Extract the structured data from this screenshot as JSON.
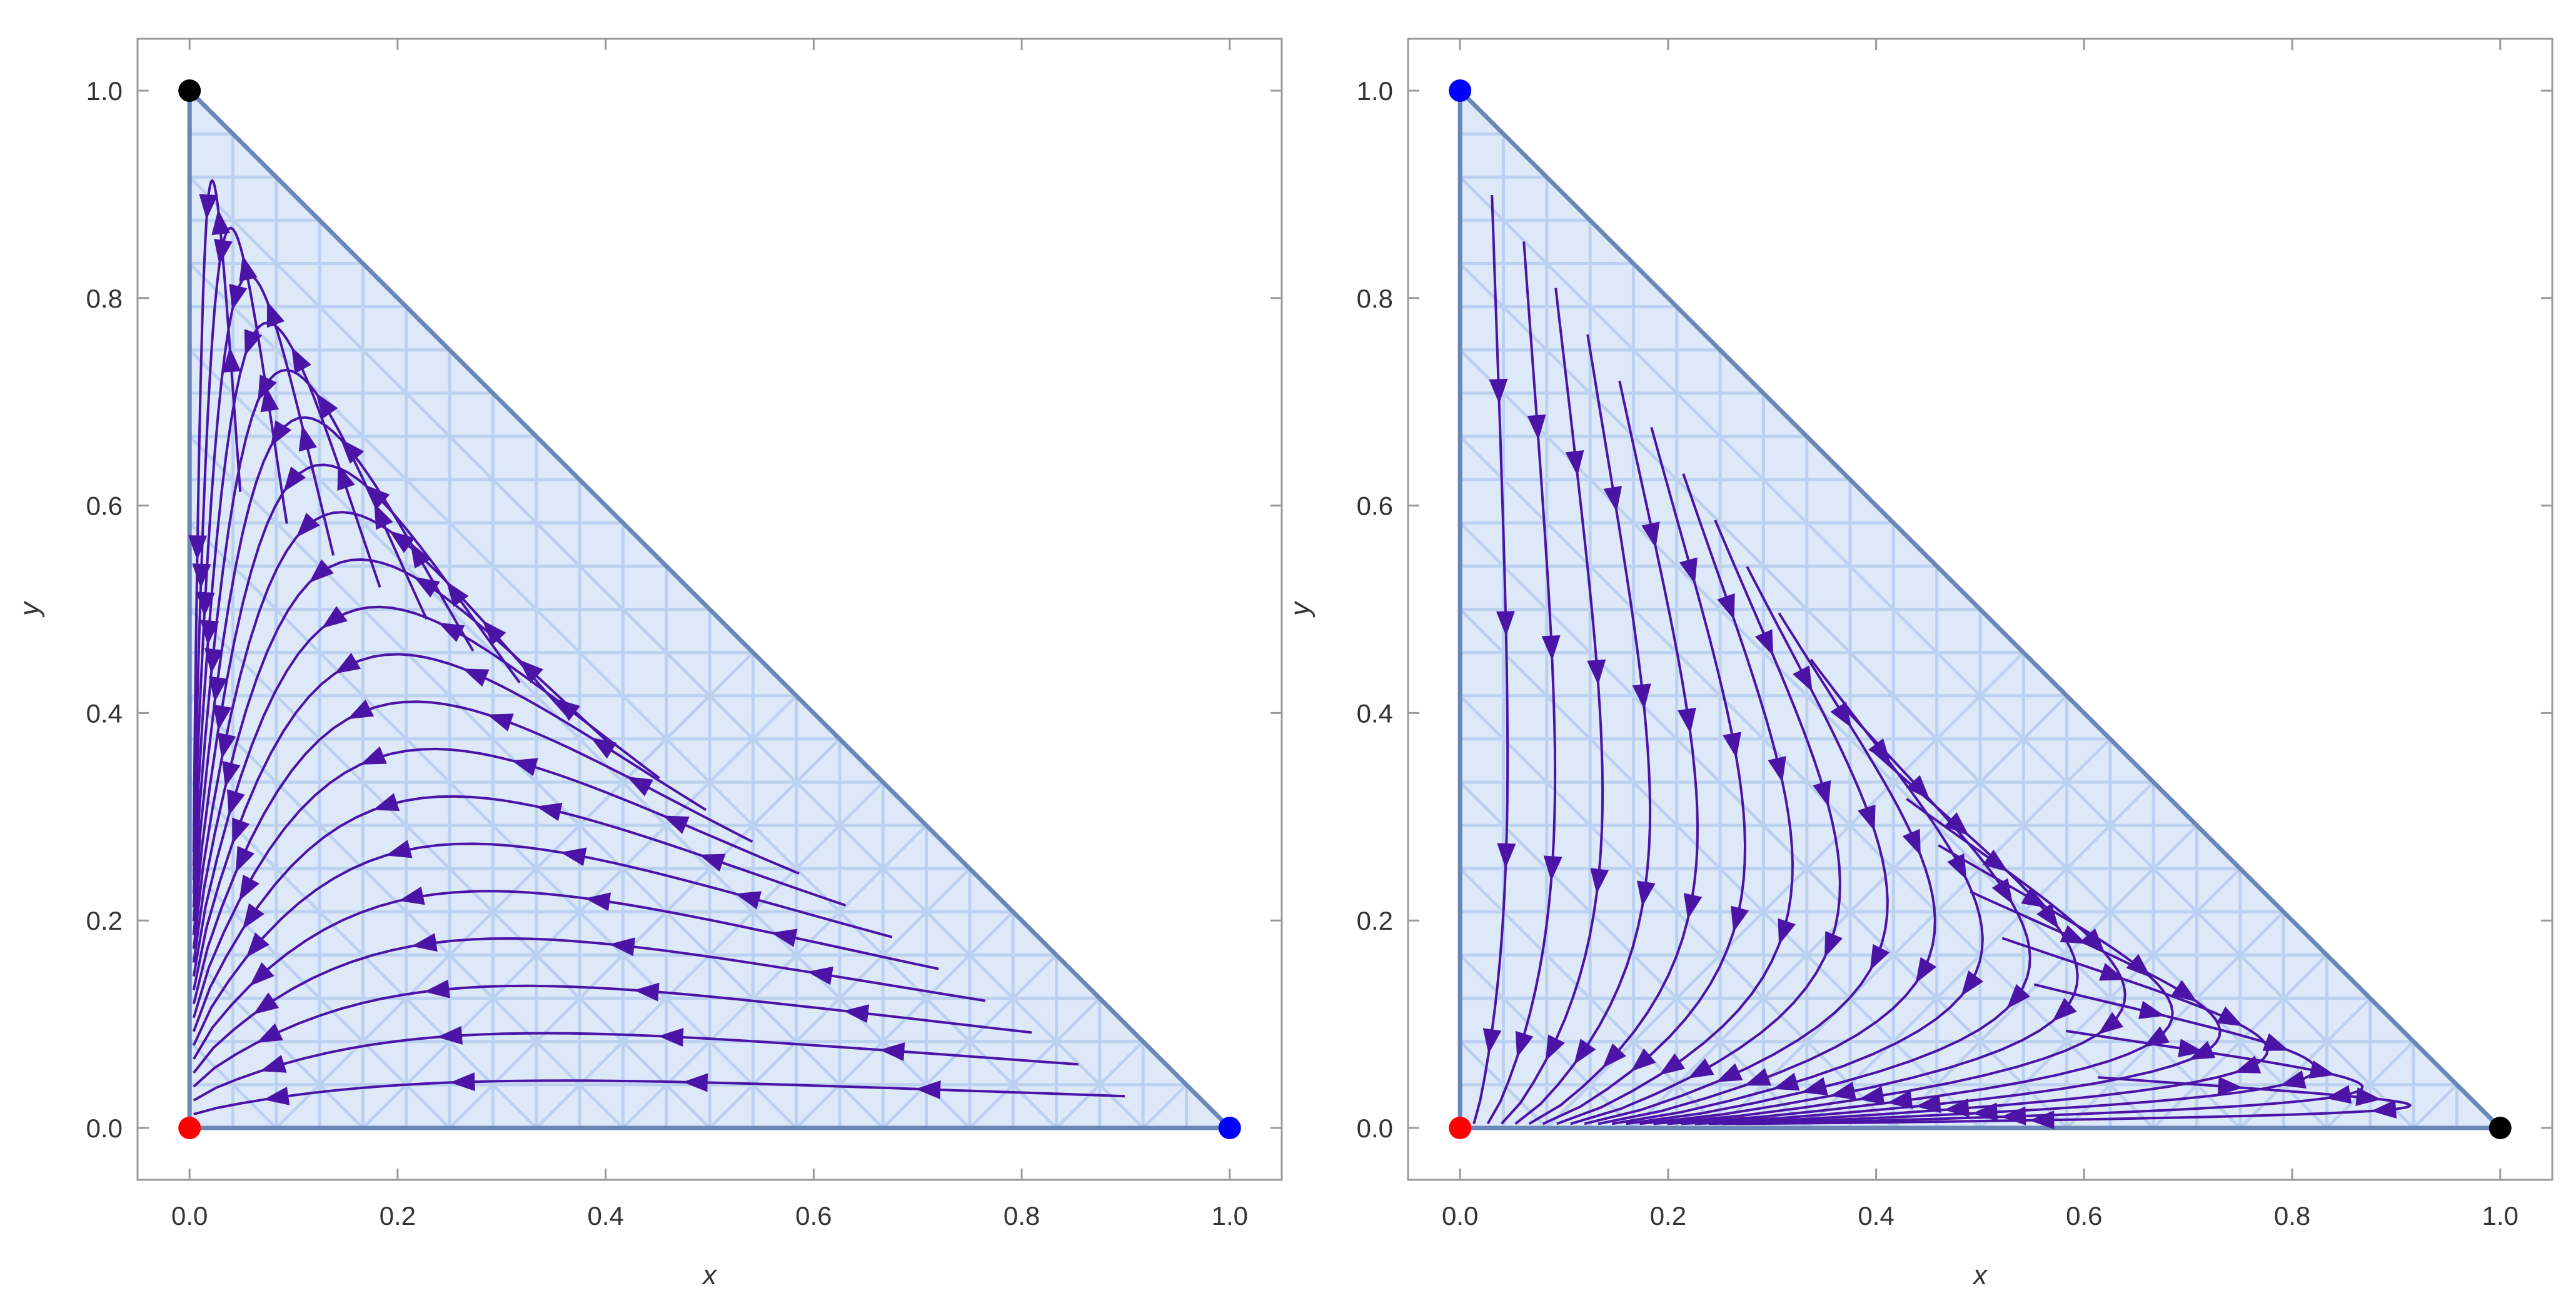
{
  "colors": {
    "region_fill": "#dde8f9",
    "region_grid": "#b4cbef",
    "region_edge": "#6a87b8",
    "stream": "#4b13a6",
    "frame": "#9a9a9a",
    "red_point": "#ff0000",
    "blue_point": "#0000ff",
    "black_point": "#000000"
  },
  "chart_data": [
    {
      "type": "scatter",
      "subtype": "stream-plot on simplex region",
      "title": "",
      "xlabel": "x",
      "ylabel": "y",
      "xlim": [
        -0.05,
        1.05
      ],
      "ylim": [
        -0.05,
        1.05
      ],
      "xticks": [
        "0.0",
        "0.2",
        "0.4",
        "0.6",
        "0.8",
        "1.0"
      ],
      "yticks": [
        "0.0",
        "0.2",
        "0.4",
        "0.6",
        "0.8",
        "1.0"
      ],
      "region": [
        [
          0,
          0
        ],
        [
          1,
          0
        ],
        [
          0,
          1
        ]
      ],
      "flow": "streamlines from the hypotenuse toward the y-axis, then down the y-axis into (0, 0)",
      "stream_direction": "left",
      "points": [
        {
          "x": 0,
          "y": 0,
          "color": "red"
        },
        {
          "x": 1,
          "y": 0,
          "color": "blue"
        },
        {
          "x": 0,
          "y": 1,
          "color": "black"
        }
      ]
    },
    {
      "type": "scatter",
      "subtype": "stream-plot on simplex region",
      "title": "",
      "xlabel": "x",
      "ylabel": "y",
      "xlim": [
        -0.05,
        1.05
      ],
      "ylim": [
        -0.05,
        1.05
      ],
      "xticks": [
        "0.0",
        "0.2",
        "0.4",
        "0.6",
        "0.8",
        "1.0"
      ],
      "yticks": [
        "0.0",
        "0.2",
        "0.4",
        "0.6",
        "0.8",
        "1.0"
      ],
      "region": [
        [
          0,
          0
        ],
        [
          1,
          0
        ],
        [
          0,
          1
        ]
      ],
      "flow": "streamlines from the hypotenuse downward, curving left along the x-axis into (0, 0)",
      "stream_direction": "down",
      "points": [
        {
          "x": 0,
          "y": 0,
          "color": "red"
        },
        {
          "x": 0,
          "y": 1,
          "color": "blue"
        },
        {
          "x": 1,
          "y": 0,
          "color": "black"
        }
      ]
    }
  ]
}
